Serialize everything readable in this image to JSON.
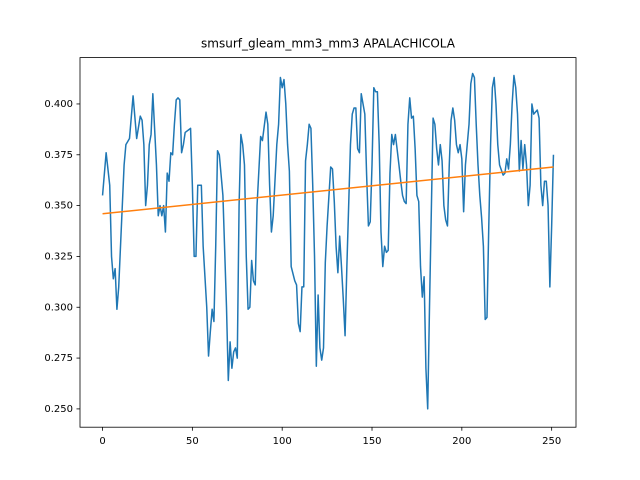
{
  "chart_data": {
    "type": "line",
    "title": "smsurf_gleam_mm3_mm3 APALACHICOLA",
    "xlim": [
      -12.55,
      263.55
    ],
    "ylim": [
      0.241,
      0.4228
    ],
    "xticks": [
      0,
      50,
      100,
      150,
      200,
      250
    ],
    "yticks": [
      {
        "value": 0.25,
        "label": "0.250"
      },
      0.275,
      {
        "value": 0.3,
        "label": "0.300"
      },
      0.325,
      {
        "value": 0.35,
        "label": "0.350"
      },
      0.375,
      {
        "value": 0.4,
        "label": "0.400"
      }
    ],
    "grid": false,
    "series": [
      {
        "color": "#1f77b4",
        "x": [
          0,
          2,
          4,
          5,
          6,
          7,
          8,
          9,
          12,
          13,
          15,
          17,
          19,
          21,
          22,
          23,
          24,
          25,
          26,
          27,
          28,
          30,
          31,
          32,
          33,
          34,
          35,
          36,
          37,
          38,
          39,
          40,
          41,
          42,
          43,
          44,
          45,
          46,
          49,
          50,
          51,
          52,
          53,
          55,
          56,
          58,
          59,
          60,
          61,
          62,
          63,
          64,
          65,
          66,
          67,
          69,
          70,
          71,
          72,
          73,
          74,
          75,
          76,
          77,
          78,
          79,
          80,
          81,
          82,
          83,
          84,
          85,
          86,
          88,
          89,
          91,
          92,
          93,
          94,
          95,
          97,
          98,
          99,
          100,
          101,
          102,
          103,
          104,
          105,
          107,
          108,
          109,
          110,
          111,
          112,
          113,
          114,
          115,
          116,
          117,
          118,
          119,
          120,
          121,
          122,
          123,
          124,
          125,
          127,
          128,
          129,
          130,
          131,
          132,
          133,
          134,
          135,
          136,
          137,
          138,
          139,
          140,
          141,
          142,
          143,
          144,
          146,
          147,
          148,
          149,
          150,
          151,
          152,
          153,
          154,
          155,
          156,
          157,
          158,
          159,
          160,
          161,
          162,
          163,
          165,
          166,
          167,
          168,
          169,
          170,
          171,
          172,
          173,
          174,
          175,
          176,
          177,
          178,
          179,
          180,
          181,
          182,
          184,
          185,
          186,
          187,
          188,
          189,
          190,
          191,
          192,
          193,
          194,
          195,
          196,
          197,
          198,
          199,
          200,
          201,
          202,
          204,
          205,
          206,
          207,
          208,
          209,
          210,
          211,
          212,
          213,
          214,
          215,
          216,
          217,
          218,
          219,
          220,
          221,
          223,
          224,
          225,
          226,
          227,
          228,
          229,
          230,
          231,
          232,
          233,
          234,
          235,
          236,
          237,
          238,
          239,
          240,
          242,
          243,
          244,
          245,
          246,
          247,
          248,
          249,
          250,
          251
        ],
        "values": [
          0.355,
          0.376,
          0.36,
          0.325,
          0.314,
          0.319,
          0.299,
          0.31,
          0.37,
          0.38,
          0.383,
          0.404,
          0.383,
          0.394,
          0.392,
          0.38,
          0.35,
          0.36,
          0.38,
          0.385,
          0.405,
          0.37,
          0.345,
          0.35,
          0.345,
          0.35,
          0.337,
          0.366,
          0.362,
          0.376,
          0.375,
          0.39,
          0.402,
          0.403,
          0.402,
          0.376,
          0.38,
          0.386,
          0.388,
          0.36,
          0.325,
          0.325,
          0.36,
          0.36,
          0.33,
          0.3,
          0.276,
          0.288,
          0.299,
          0.293,
          0.33,
          0.377,
          0.375,
          0.365,
          0.355,
          0.3,
          0.264,
          0.283,
          0.27,
          0.278,
          0.28,
          0.275,
          0.35,
          0.385,
          0.38,
          0.37,
          0.325,
          0.299,
          0.3,
          0.323,
          0.313,
          0.311,
          0.35,
          0.384,
          0.382,
          0.396,
          0.39,
          0.36,
          0.337,
          0.345,
          0.38,
          0.39,
          0.413,
          0.408,
          0.412,
          0.4,
          0.38,
          0.367,
          0.32,
          0.313,
          0.311,
          0.292,
          0.288,
          0.31,
          0.31,
          0.372,
          0.38,
          0.39,
          0.388,
          0.36,
          0.325,
          0.271,
          0.306,
          0.28,
          0.274,
          0.28,
          0.322,
          0.34,
          0.369,
          0.368,
          0.352,
          0.33,
          0.317,
          0.335,
          0.32,
          0.304,
          0.286,
          0.32,
          0.35,
          0.38,
          0.395,
          0.398,
          0.398,
          0.378,
          0.376,
          0.405,
          0.395,
          0.365,
          0.34,
          0.342,
          0.37,
          0.408,
          0.406,
          0.406,
          0.38,
          0.337,
          0.32,
          0.33,
          0.327,
          0.328,
          0.366,
          0.385,
          0.38,
          0.385,
          0.37,
          0.362,
          0.355,
          0.352,
          0.351,
          0.39,
          0.403,
          0.393,
          0.394,
          0.378,
          0.355,
          0.352,
          0.32,
          0.305,
          0.315,
          0.27,
          0.25,
          0.3,
          0.393,
          0.39,
          0.378,
          0.37,
          0.38,
          0.372,
          0.35,
          0.343,
          0.34,
          0.37,
          0.392,
          0.398,
          0.392,
          0.38,
          0.376,
          0.38,
          0.373,
          0.347,
          0.37,
          0.39,
          0.41,
          0.415,
          0.413,
          0.39,
          0.37,
          0.355,
          0.344,
          0.33,
          0.294,
          0.295,
          0.34,
          0.38,
          0.408,
          0.413,
          0.4,
          0.38,
          0.37,
          0.365,
          0.366,
          0.373,
          0.368,
          0.38,
          0.4,
          0.414,
          0.408,
          0.395,
          0.367,
          0.382,
          0.368,
          0.38,
          0.37,
          0.35,
          0.36,
          0.4,
          0.395,
          0.397,
          0.393,
          0.36,
          0.35,
          0.362,
          0.362,
          0.35,
          0.31,
          0.34,
          0.375
        ]
      },
      {
        "color": "#ff7f0e",
        "x": [
          0,
          251
        ],
        "values": [
          0.346,
          0.369
        ]
      }
    ]
  }
}
